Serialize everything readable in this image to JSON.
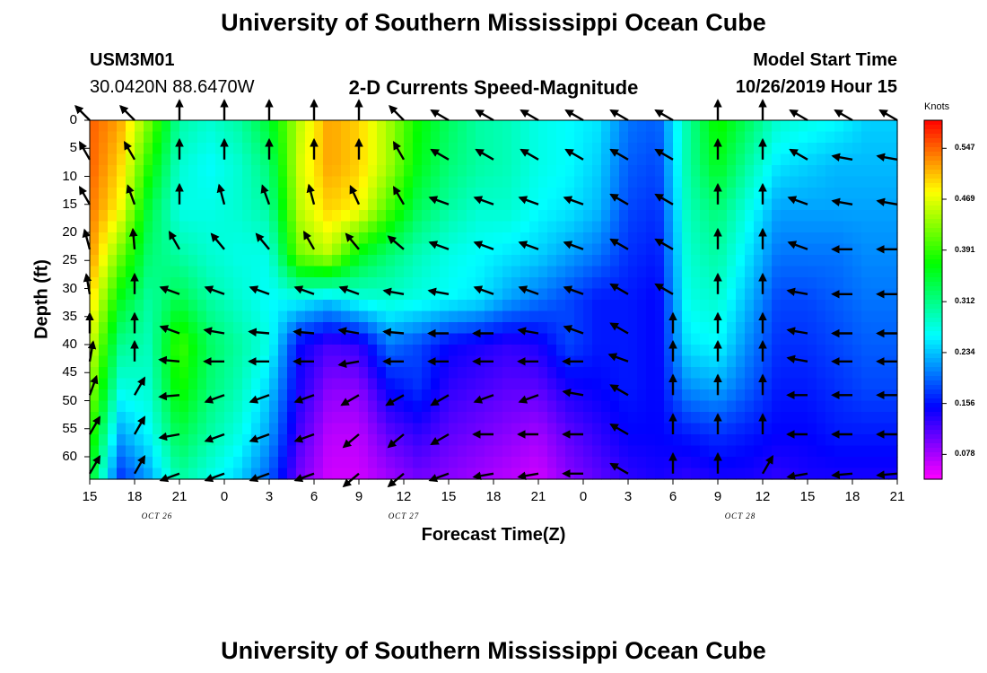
{
  "page_title": "University of Southern Mississippi Ocean Cube",
  "footer_title": "University of Southern Mississippi Ocean Cube",
  "station": {
    "id": "USM3M01",
    "coords": "30.0420N 88.6470W"
  },
  "model_start": {
    "label": "Model Start Time",
    "value": "10/26/2019 Hour 15"
  },
  "chart_data": {
    "type": "heatmap",
    "title": "2-D Currents Speed-Magnitude",
    "xlabel": "Forecast Time(Z)",
    "ylabel": "Depth (ft)",
    "colorbar_label": "Knots",
    "colorbar_ticks": [
      0.078,
      0.156,
      0.234,
      0.312,
      0.391,
      0.469,
      0.547
    ],
    "colorbar_tick_labels": [
      "0.078",
      "0.156",
      "0.234",
      "0.312",
      "0.391",
      "0.469",
      "0.547"
    ],
    "colorbar_range": [
      0.04,
      0.59
    ],
    "xlim": [
      15,
      69
    ],
    "ylim": [
      0,
      64
    ],
    "y_inverted": true,
    "xtick_hours": [
      15,
      18,
      21,
      24,
      27,
      30,
      33,
      36,
      39,
      42,
      45,
      48,
      51,
      54,
      57,
      60,
      63,
      66,
      69
    ],
    "xtick_labels": [
      "15",
      "18",
      "21",
      "0",
      "3",
      "6",
      "9",
      "12",
      "15",
      "18",
      "21",
      "0",
      "3",
      "6",
      "9",
      "12",
      "15",
      "18",
      "21"
    ],
    "ytick_labels": [
      "0",
      "5",
      "10",
      "15",
      "20",
      "25",
      "30",
      "35",
      "40",
      "45",
      "50",
      "55",
      "60"
    ],
    "yticks": [
      0,
      5,
      10,
      15,
      20,
      25,
      30,
      35,
      40,
      45,
      50,
      55,
      60
    ],
    "date_labels": [
      {
        "hour": 19.5,
        "text": "OCT 26"
      },
      {
        "hour": 36,
        "text": "OCT 27"
      },
      {
        "hour": 58.5,
        "text": "OCT 28"
      }
    ],
    "vector_times": [
      15,
      18,
      21,
      24,
      27,
      30,
      33,
      36,
      39,
      42,
      45,
      48,
      51,
      54,
      57,
      60,
      63,
      66,
      69
    ],
    "vector_depths": [
      0,
      7,
      15,
      23,
      31,
      38,
      43,
      49,
      56,
      63
    ],
    "vector_directions_deg": [
      [
        225,
        225,
        270,
        270,
        270,
        270,
        270,
        225,
        210,
        210,
        210,
        210,
        210,
        210,
        270,
        270,
        210,
        210,
        210
      ],
      [
        240,
        240,
        270,
        270,
        270,
        270,
        270,
        240,
        210,
        210,
        210,
        210,
        210,
        210,
        270,
        270,
        210,
        190,
        190
      ],
      [
        240,
        250,
        270,
        255,
        250,
        255,
        245,
        240,
        200,
        200,
        200,
        200,
        210,
        210,
        270,
        270,
        200,
        190,
        190
      ],
      [
        255,
        265,
        240,
        230,
        230,
        240,
        230,
        220,
        200,
        200,
        200,
        200,
        210,
        210,
        270,
        270,
        200,
        180,
        180
      ],
      [
        260,
        270,
        200,
        200,
        200,
        200,
        200,
        190,
        190,
        200,
        200,
        200,
        210,
        210,
        270,
        270,
        190,
        180,
        180
      ],
      [
        270,
        270,
        200,
        190,
        185,
        185,
        190,
        185,
        180,
        180,
        190,
        200,
        210,
        270,
        270,
        270,
        190,
        180,
        180
      ],
      [
        280,
        270,
        185,
        180,
        180,
        180,
        170,
        180,
        180,
        180,
        180,
        180,
        200,
        270,
        270,
        270,
        190,
        180,
        180
      ],
      [
        290,
        300,
        175,
        160,
        160,
        160,
        150,
        150,
        150,
        160,
        160,
        190,
        210,
        270,
        270,
        270,
        180,
        180,
        180
      ],
      [
        300,
        300,
        170,
        160,
        160,
        160,
        140,
        140,
        150,
        180,
        180,
        180,
        210,
        270,
        270,
        270,
        180,
        180,
        180
      ],
      [
        300,
        300,
        160,
        160,
        160,
        160,
        140,
        140,
        160,
        170,
        170,
        180,
        210,
        270,
        270,
        300,
        170,
        175,
        175
      ]
    ],
    "speed_times": [
      15,
      17,
      19,
      21,
      23,
      25,
      27,
      29,
      31,
      33,
      35,
      37,
      39,
      41,
      43,
      45,
      47,
      49,
      51,
      53,
      55,
      57,
      59,
      61,
      63,
      65,
      67,
      69
    ],
    "speed_depths": [
      0,
      8,
      16,
      24,
      32,
      40,
      48,
      56,
      64
    ],
    "speed_grid": [
      [
        0.55,
        0.52,
        0.42,
        0.3,
        0.28,
        0.3,
        0.35,
        0.45,
        0.52,
        0.5,
        0.44,
        0.37,
        0.33,
        0.3,
        0.29,
        0.27,
        0.26,
        0.25,
        0.2,
        0.19,
        0.3,
        0.38,
        0.33,
        0.28,
        0.27,
        0.26,
        0.24,
        0.24
      ],
      [
        0.55,
        0.5,
        0.38,
        0.28,
        0.26,
        0.28,
        0.32,
        0.46,
        0.52,
        0.5,
        0.44,
        0.36,
        0.32,
        0.3,
        0.29,
        0.27,
        0.26,
        0.24,
        0.19,
        0.18,
        0.3,
        0.36,
        0.3,
        0.25,
        0.24,
        0.23,
        0.23,
        0.23
      ],
      [
        0.54,
        0.48,
        0.34,
        0.27,
        0.27,
        0.28,
        0.3,
        0.45,
        0.5,
        0.48,
        0.4,
        0.33,
        0.3,
        0.28,
        0.28,
        0.26,
        0.25,
        0.23,
        0.18,
        0.17,
        0.29,
        0.32,
        0.27,
        0.22,
        0.22,
        0.22,
        0.22,
        0.22
      ],
      [
        0.53,
        0.42,
        0.32,
        0.3,
        0.28,
        0.27,
        0.27,
        0.42,
        0.45,
        0.36,
        0.32,
        0.29,
        0.27,
        0.26,
        0.25,
        0.24,
        0.22,
        0.2,
        0.17,
        0.16,
        0.28,
        0.3,
        0.25,
        0.2,
        0.2,
        0.2,
        0.21,
        0.21
      ],
      [
        0.5,
        0.36,
        0.3,
        0.34,
        0.3,
        0.28,
        0.26,
        0.26,
        0.24,
        0.27,
        0.28,
        0.27,
        0.26,
        0.25,
        0.22,
        0.2,
        0.18,
        0.16,
        0.16,
        0.15,
        0.27,
        0.28,
        0.23,
        0.18,
        0.18,
        0.19,
        0.2,
        0.2
      ],
      [
        0.47,
        0.31,
        0.29,
        0.4,
        0.33,
        0.3,
        0.27,
        0.15,
        0.12,
        0.13,
        0.2,
        0.18,
        0.15,
        0.14,
        0.13,
        0.14,
        0.18,
        0.16,
        0.16,
        0.15,
        0.25,
        0.26,
        0.21,
        0.17,
        0.17,
        0.18,
        0.19,
        0.19
      ],
      [
        0.44,
        0.27,
        0.28,
        0.38,
        0.32,
        0.29,
        0.24,
        0.14,
        0.09,
        0.09,
        0.15,
        0.17,
        0.13,
        0.12,
        0.11,
        0.11,
        0.14,
        0.15,
        0.16,
        0.15,
        0.21,
        0.22,
        0.19,
        0.16,
        0.16,
        0.17,
        0.18,
        0.18
      ],
      [
        0.4,
        0.22,
        0.26,
        0.34,
        0.3,
        0.27,
        0.22,
        0.12,
        0.07,
        0.07,
        0.11,
        0.13,
        0.11,
        0.1,
        0.09,
        0.08,
        0.11,
        0.13,
        0.15,
        0.15,
        0.16,
        0.17,
        0.16,
        0.15,
        0.15,
        0.16,
        0.16,
        0.16
      ],
      [
        0.36,
        0.17,
        0.22,
        0.3,
        0.27,
        0.24,
        0.19,
        0.1,
        0.06,
        0.06,
        0.08,
        0.1,
        0.09,
        0.08,
        0.07,
        0.06,
        0.09,
        0.11,
        0.13,
        0.14,
        0.13,
        0.14,
        0.14,
        0.13,
        0.14,
        0.14,
        0.14,
        0.14
      ]
    ]
  }
}
